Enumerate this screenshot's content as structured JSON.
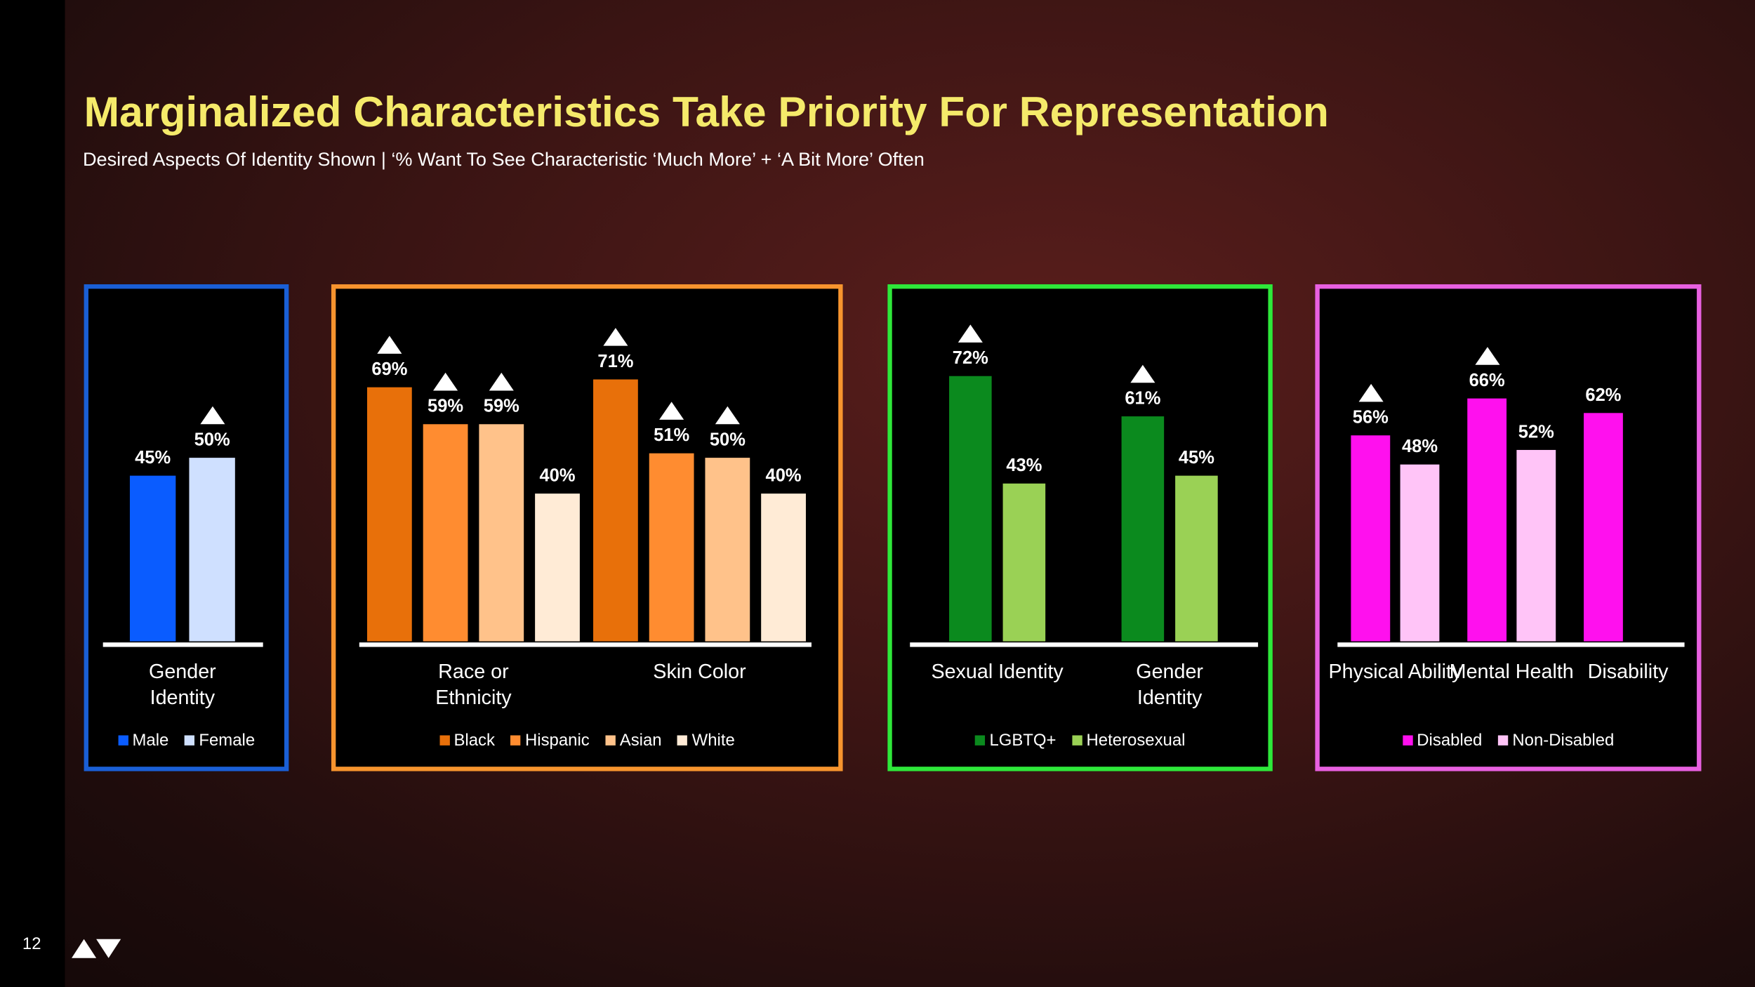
{
  "title": "Marginalized Characteristics Take Priority For Representation",
  "subtitle": "Desired Aspects Of Identity Shown | ‘% Want To See Characteristic ‘Much More’ + ‘A Bit More’ Often",
  "page_number": "12",
  "chart_data": [
    {
      "type": "bar",
      "frame_color": "#1a5fd6",
      "categories": [
        "Gender Identity"
      ],
      "series": [
        {
          "name": "Male",
          "color": "#0a5cff",
          "values": [
            45
          ],
          "value_labels": [
            "45%"
          ],
          "triangle": [
            false
          ]
        },
        {
          "name": "Female",
          "color": "#cfe0ff",
          "values": [
            50
          ],
          "value_labels": [
            "50%"
          ],
          "triangle": [
            true
          ]
        }
      ]
    },
    {
      "type": "bar",
      "frame_color": "#f7942e",
      "categories": [
        "Race or Ethnicity",
        "Skin Color"
      ],
      "series": [
        {
          "name": "Black",
          "color": "#e8700a",
          "values": [
            69,
            71
          ],
          "value_labels": [
            "69%",
            "71%"
          ],
          "triangle": [
            true,
            true
          ]
        },
        {
          "name": "Hispanic",
          "color": "#ff8c30",
          "values": [
            59,
            51
          ],
          "value_labels": [
            "59%",
            "51%"
          ],
          "triangle": [
            true,
            true
          ]
        },
        {
          "name": "Asian",
          "color": "#ffc28a",
          "values": [
            59,
            50
          ],
          "value_labels": [
            "59%",
            "50%"
          ],
          "triangle": [
            true,
            true
          ]
        },
        {
          "name": "White",
          "color": "#ffebd6",
          "values": [
            40,
            40
          ],
          "value_labels": [
            "40%",
            "40%"
          ],
          "triangle": [
            false,
            false
          ]
        }
      ]
    },
    {
      "type": "bar",
      "frame_color": "#2ee83a",
      "categories": [
        "Sexual Identity",
        "Gender Identity"
      ],
      "series": [
        {
          "name": "LGBTQ+",
          "color": "#0b8a1e",
          "values": [
            72,
            61
          ],
          "value_labels": [
            "72%",
            "61%"
          ],
          "triangle": [
            true,
            true
          ]
        },
        {
          "name": "Heterosexual",
          "color": "#9ad155",
          "values": [
            43,
            45
          ],
          "value_labels": [
            "43%",
            "45%"
          ],
          "triangle": [
            false,
            false
          ]
        }
      ]
    },
    {
      "type": "bar",
      "frame_color": "#e860e0",
      "categories": [
        "Physical Ability",
        "Mental Health",
        "Disability"
      ],
      "series": [
        {
          "name": "Disabled",
          "color": "#ff10ee",
          "values": [
            56,
            66,
            62
          ],
          "value_labels": [
            "56%",
            "66%",
            "62%"
          ],
          "triangle": [
            true,
            true,
            false
          ]
        },
        {
          "name": "Non-Disabled",
          "color": "#ffc4f7",
          "values": [
            48,
            52,
            null
          ],
          "value_labels": [
            "48%",
            "52%",
            null
          ],
          "triangle": [
            false,
            false,
            false
          ]
        }
      ]
    }
  ]
}
